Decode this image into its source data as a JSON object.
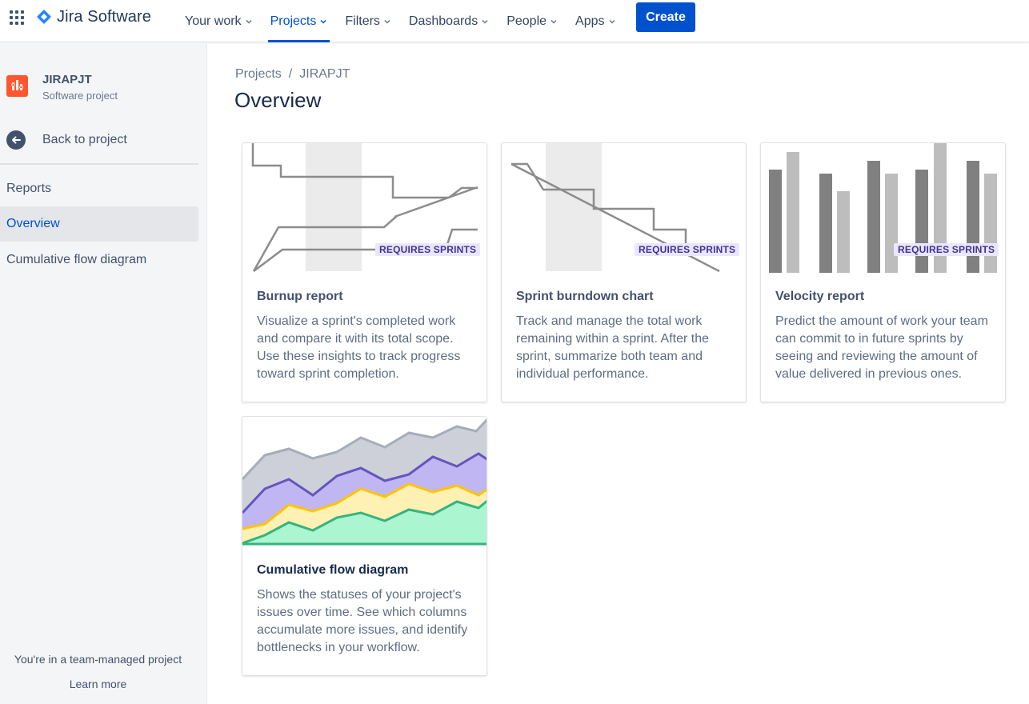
{
  "brand": {
    "name": "Jira Software",
    "accent": "#0052cc"
  },
  "nav": {
    "items": [
      {
        "label": "Your work",
        "active": false
      },
      {
        "label": "Projects",
        "active": true
      },
      {
        "label": "Filters",
        "active": false
      },
      {
        "label": "Dashboards",
        "active": false
      },
      {
        "label": "People",
        "active": false
      },
      {
        "label": "Apps",
        "active": false
      }
    ],
    "create_label": "Create"
  },
  "sidebar": {
    "project_name": "JIRAPJT",
    "project_type": "Software project",
    "back_label": "Back to project",
    "section_heading": "Reports",
    "items": [
      {
        "label": "Overview",
        "selected": true
      },
      {
        "label": "Cumulative flow diagram",
        "selected": false
      }
    ],
    "footer_text": "You're in a team-managed project",
    "footer_link": "Learn more"
  },
  "breadcrumb": {
    "items": [
      "Projects",
      "JIRAPJT"
    ],
    "separator": "/"
  },
  "page_title": "Overview",
  "cards": [
    {
      "title": "Burnup report",
      "badge": "REQUIRES SPRINTS",
      "description": "Visualize a sprint's completed work and compare it with its total scope. Use these insights to track progress toward sprint completion."
    },
    {
      "title": "Sprint burndown chart",
      "badge": "REQUIRES SPRINTS",
      "description": "Track and manage the total work remaining within a sprint. After the sprint, summarize both team and individual performance."
    },
    {
      "title": "Velocity report",
      "badge": "REQUIRES SPRINTS",
      "description": "Predict the amount of work your team can commit to in future sprints by seeing and reviewing the amount of value delivered in previous ones."
    },
    {
      "title": "Cumulative flow diagram",
      "badge": "",
      "description": "Shows the statuses of your project's issues over time. See which columns accumulate more issues, and identify bottlenecks in your workflow."
    }
  ]
}
